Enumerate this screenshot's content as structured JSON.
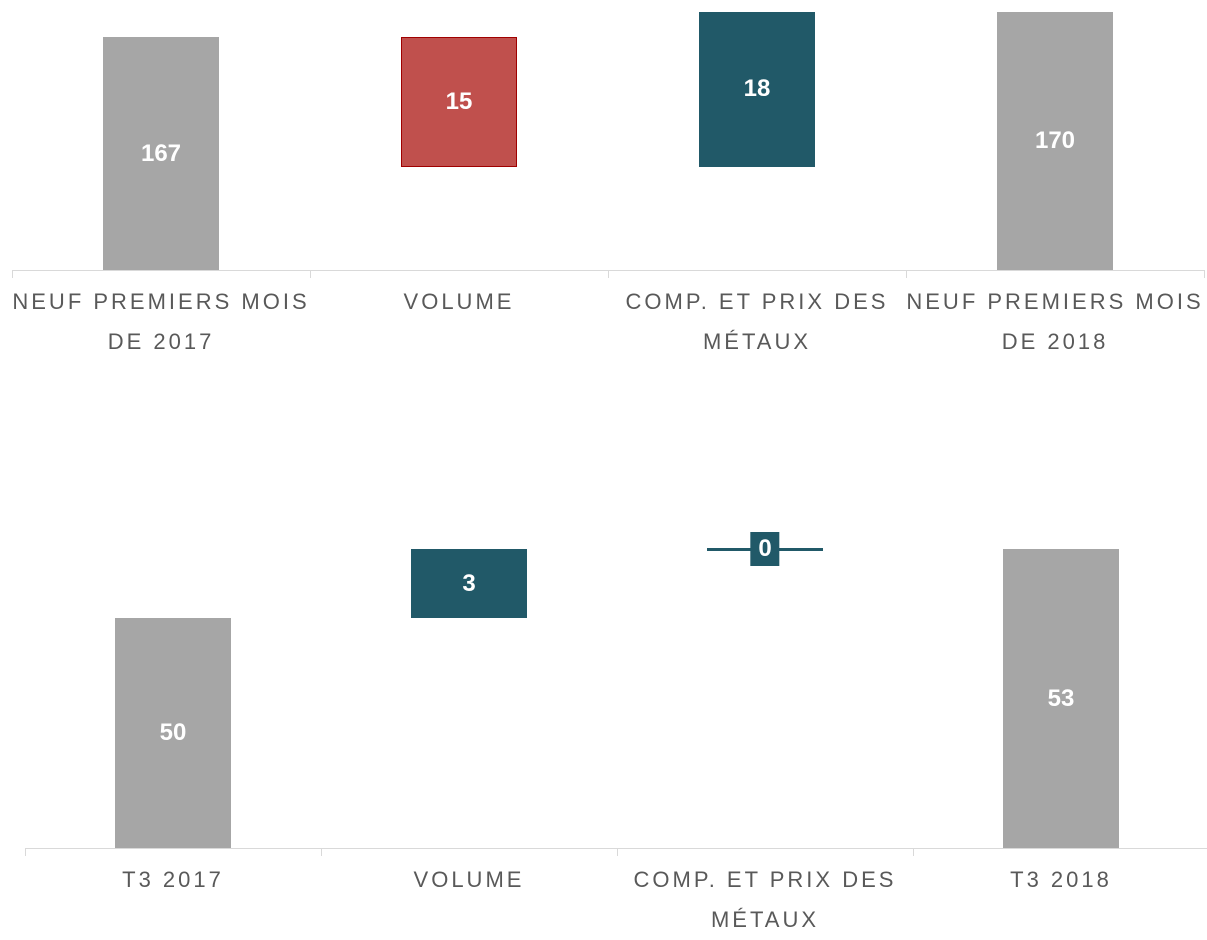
{
  "chart_data": [
    {
      "type": "waterfall",
      "categories": [
        "NEUF PREMIERS MOIS DE 2017",
        "VOLUME",
        "COMP. ET PRIX DES MÉTAUX",
        "NEUF PREMIERS MOIS DE 2018"
      ],
      "values": [
        167,
        -15,
        18,
        170
      ],
      "value_labels": [
        "167",
        "15",
        "18",
        "170"
      ],
      "colors": [
        "#a6a6a6",
        "#c0504d",
        "#215968",
        "#a6a6a6"
      ],
      "ylim": [
        140,
        171
      ]
    },
    {
      "type": "waterfall",
      "categories": [
        "T3 2017",
        "VOLUME",
        "COMP. ET PRIX DES MÉTAUX",
        "T3 2018"
      ],
      "values": [
        50,
        3,
        0,
        53
      ],
      "value_labels": [
        "50",
        "3",
        "0",
        "53"
      ],
      "colors": [
        "#a6a6a6",
        "#215968",
        "#215968",
        "#a6a6a6"
      ],
      "ylim": [
        40,
        55
      ]
    }
  ]
}
